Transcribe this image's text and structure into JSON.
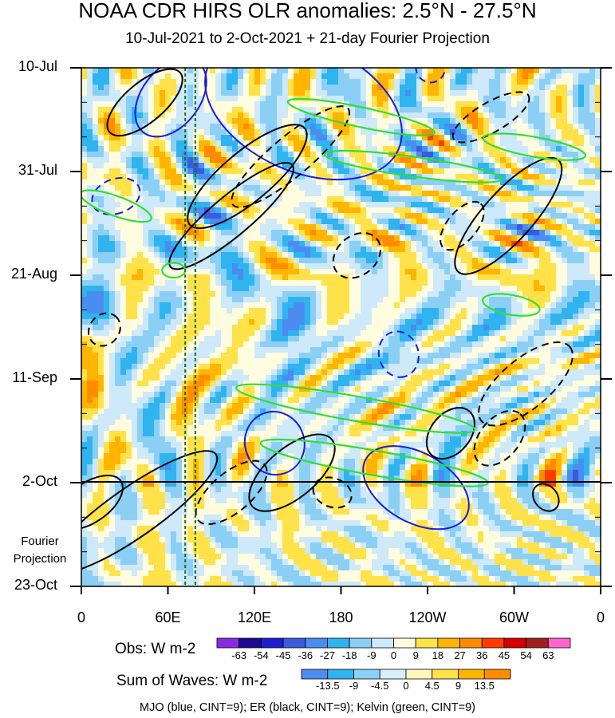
{
  "title": "NOAA CDR HIRS OLR anomalies: 2.5°N - 27.5°N",
  "subtitle": "10-Jul-2021 to 2-Oct-2021 + 21-day Fourier Projection",
  "fourier_label": [
    "Fourier",
    "Projection"
  ],
  "footer": "MJO (blue, CINT=9); ER (black, CINT=9); Kelvin (green, CINT=9)",
  "colors": {
    "mjo": "#1a1adb",
    "er": "#000000",
    "kelvin": "#33dd33",
    "reference_lines": "#1e6b1e"
  },
  "chart_data": {
    "type": "heatmap",
    "description_kind": "Hovmoller (longitude-time) diagram of OLR anomalies with filtered wave contours",
    "x_axis": {
      "tick_labels": [
        "0",
        "60E",
        "120E",
        "180",
        "120W",
        "60W",
        "0"
      ],
      "tick_values_deg_east": [
        0,
        60,
        120,
        180,
        240,
        300,
        360
      ],
      "range": [
        0,
        360
      ]
    },
    "y_axis": {
      "tick_labels": [
        "10-Jul",
        "31-Jul",
        "21-Aug",
        "11-Sep",
        "2-Oct",
        "23-Oct"
      ],
      "tick_values_days_from_start": [
        0,
        21,
        42,
        63,
        84,
        105
      ],
      "range": [
        0,
        105
      ],
      "direction": "time increases downward",
      "observed_end_label": "2-Oct"
    },
    "reference_lines_deg_east": [
      72,
      79
    ],
    "obs_colorbar": {
      "label": "Obs: W m-2",
      "levels": [
        "-63",
        "-54",
        "-45",
        "-36",
        "-27",
        "-18",
        "-9",
        "0",
        "9",
        "18",
        "27",
        "36",
        "45",
        "54",
        "63"
      ],
      "colors": [
        "#8a2be2",
        "#1a0a8c",
        "#1e1ecf",
        "#3b5bdc",
        "#4a8cf0",
        "#2fb4f0",
        "#8ccff5",
        "#cde9fa",
        "#fffce0",
        "#ffe24a",
        "#ffb400",
        "#ff8c00",
        "#ff3c00",
        "#d40000",
        "#a02020",
        "#ff66cc"
      ]
    },
    "waves_colorbar": {
      "label": "Sum of Waves: W m-2",
      "levels": [
        "-13.5",
        "-9",
        "-4.5",
        "0",
        "4.5",
        "9",
        "13.5"
      ],
      "colors": [
        "#4a8cf0",
        "#2fb4f0",
        "#8ccff5",
        "#d8eefa",
        "#fff6c0",
        "#ffe24a",
        "#ffb400",
        "#ff8c00"
      ]
    },
    "contours": [
      {
        "wave": "MJO",
        "lon": 62,
        "day": 6,
        "rx": 20,
        "ry": 9,
        "angle": 38,
        "dashed": false
      },
      {
        "wave": "MJO",
        "lon": 154,
        "day": 8,
        "rx": 72,
        "ry": 13,
        "angle": 24,
        "dashed": false
      },
      {
        "wave": "MJO",
        "lon": 24,
        "day": 26,
        "rx": 12,
        "ry": 5,
        "angle": 70,
        "dashed": true
      },
      {
        "wave": "MJO",
        "lon": 242,
        "day": 0,
        "rx": 10,
        "ry": 3,
        "angle": -30,
        "dashed": true
      },
      {
        "wave": "MJO",
        "lon": 220,
        "day": 58,
        "rx": 16,
        "ry": 4,
        "angle": 75,
        "dashed": true
      },
      {
        "wave": "MJO",
        "lon": 134,
        "day": 76,
        "rx": 22,
        "ry": 6,
        "angle": 72,
        "dashed": false
      },
      {
        "wave": "MJO",
        "lon": 232,
        "day": 85,
        "rx": 40,
        "ry": 7,
        "angle": 30,
        "dashed": false
      },
      {
        "wave": "ER",
        "lon": 44,
        "day": 7,
        "rx": 32,
        "ry": 4,
        "angle": -40,
        "dashed": false
      },
      {
        "wave": "ER",
        "lon": 115,
        "day": 22,
        "rx": 52,
        "ry": 5,
        "angle": -40,
        "dashed": false
      },
      {
        "wave": "ER",
        "lon": 145,
        "day": 18,
        "rx": 52,
        "ry": 4,
        "angle": -40,
        "dashed": true
      },
      {
        "wave": "ER",
        "lon": 104,
        "day": 30,
        "rx": 55,
        "ry": 4,
        "angle": -40,
        "dashed": false
      },
      {
        "wave": "ER",
        "lon": 191,
        "day": 38,
        "rx": 18,
        "ry": 4,
        "angle": -40,
        "dashed": true
      },
      {
        "wave": "ER",
        "lon": 296,
        "day": 30,
        "rx": 52,
        "ry": 5,
        "angle": -48,
        "dashed": false
      },
      {
        "wave": "ER",
        "lon": 284,
        "day": 10,
        "rx": 30,
        "ry": 3,
        "angle": -30,
        "dashed": true
      },
      {
        "wave": "ER",
        "lon": 264,
        "day": 32,
        "rx": 20,
        "ry": 3,
        "angle": -50,
        "dashed": true
      },
      {
        "wave": "ER",
        "lon": 16,
        "day": 53,
        "rx": 12,
        "ry": 3,
        "angle": -50,
        "dashed": true
      },
      {
        "wave": "ER",
        "lon": 308,
        "day": 64,
        "rx": 40,
        "ry": 5,
        "angle": -40,
        "dashed": true
      },
      {
        "wave": "ER",
        "lon": 256,
        "day": 74,
        "rx": 20,
        "ry": 4,
        "angle": -50,
        "dashed": false
      },
      {
        "wave": "ER",
        "lon": 290,
        "day": 75,
        "rx": 22,
        "ry": 4,
        "angle": -50,
        "dashed": true
      },
      {
        "wave": "ER",
        "lon": 146,
        "day": 82,
        "rx": 36,
        "ry": 5,
        "angle": -40,
        "dashed": false
      },
      {
        "wave": "ER",
        "lon": 104,
        "day": 86,
        "rx": 30,
        "ry": 4,
        "angle": -40,
        "dashed": true
      },
      {
        "wave": "ER",
        "lon": 174,
        "day": 86,
        "rx": 10,
        "ry": 4,
        "angle": -70,
        "dashed": true
      },
      {
        "wave": "ER",
        "lon": 36,
        "day": 90,
        "rx": 70,
        "ry": 5,
        "angle": -35,
        "dashed": false
      },
      {
        "wave": "ER",
        "lon": 6,
        "day": 88,
        "rx": 26,
        "ry": 4,
        "angle": -35,
        "dashed": false
      },
      {
        "wave": "ER",
        "lon": 322,
        "day": 87,
        "rx": 8,
        "ry": 3,
        "angle": -40,
        "dashed": false
      },
      {
        "wave": "Kelvin",
        "lon": 64,
        "day": 41,
        "rx": 8,
        "ry": 1.5,
        "angle": 0,
        "dashed": false
      },
      {
        "wave": "Kelvin",
        "lon": 194,
        "day": 10,
        "rx": 52,
        "ry": 2,
        "angle": 12,
        "dashed": false
      },
      {
        "wave": "Kelvin",
        "lon": 230,
        "day": 20,
        "rx": 62,
        "ry": 2,
        "angle": 8,
        "dashed": false
      },
      {
        "wave": "Kelvin",
        "lon": 314,
        "day": 16,
        "rx": 36,
        "ry": 2,
        "angle": 10,
        "dashed": false
      },
      {
        "wave": "Kelvin",
        "lon": 24,
        "day": 28,
        "rx": 26,
        "ry": 2,
        "angle": 20,
        "dashed": false
      },
      {
        "wave": "Kelvin",
        "lon": 298,
        "day": 48,
        "rx": 20,
        "ry": 2,
        "angle": 10,
        "dashed": false
      },
      {
        "wave": "Kelvin",
        "lon": 190,
        "day": 69,
        "rx": 84,
        "ry": 2.5,
        "angle": 10,
        "dashed": false
      },
      {
        "wave": "Kelvin",
        "lon": 203,
        "day": 80,
        "rx": 80,
        "ry": 2.5,
        "angle": 10,
        "dashed": false
      }
    ]
  }
}
